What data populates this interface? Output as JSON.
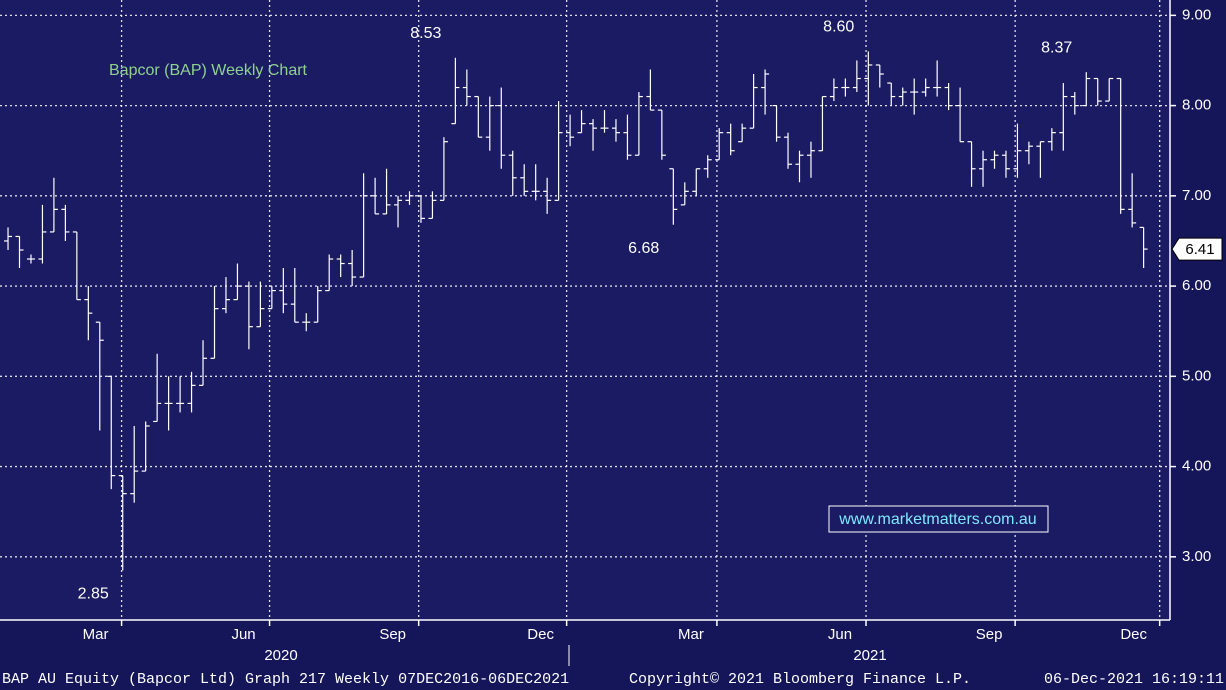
{
  "chart_data": {
    "type": "ohlc",
    "title": "Bapcor (BAP) Weekly Chart",
    "watermark": "www.marketmatters.com.au",
    "color": "#ffffff",
    "title_color": "#8fd28f",
    "grid": true,
    "xlim": [
      -0.7,
      101.3
    ],
    "xticks": [
      {
        "value": 9.9,
        "label": "Mar"
      },
      {
        "value": 22.8,
        "label": "Jun"
      },
      {
        "value": 35.8,
        "label": "Sep"
      },
      {
        "value": 48.7,
        "label": "Dec"
      },
      {
        "value": 61.8,
        "label": "Mar"
      },
      {
        "value": 74.8,
        "label": "Jun"
      },
      {
        "value": 87.8,
        "label": "Sep"
      },
      {
        "value": 100.4,
        "label": "Dec"
      }
    ],
    "years": [
      "2020",
      "2021"
    ],
    "ylim": [
      2.3,
      9.17
    ],
    "yticks": [
      {
        "value": 3,
        "label": "3.00"
      },
      {
        "value": 4,
        "label": "4.00"
      },
      {
        "value": 5,
        "label": "5.00"
      },
      {
        "value": 6,
        "label": "6.00"
      },
      {
        "value": 7,
        "label": "7.00"
      },
      {
        "value": 8,
        "label": "8.00"
      },
      {
        "value": 9,
        "label": "9.00"
      }
    ],
    "open": [
      6.5,
      6.55,
      6.3,
      6.3,
      6.6,
      6.85,
      6.6,
      5.85,
      5.6,
      5.0,
      3.9,
      3.7,
      3.95,
      4.5,
      4.7,
      4.7,
      4.7,
      4.9,
      5.2,
      5.75,
      5.85,
      6.0,
      5.55,
      5.75,
      5.95,
      5.8,
      5.6,
      5.6,
      5.95,
      6.3,
      6.25,
      6.1,
      7.0,
      6.8,
      6.9,
      6.95,
      7.0,
      6.75,
      6.95,
      7.8,
      8.2,
      8.1,
      7.65,
      8.0,
      7.45,
      7.2,
      7.05,
      7.05,
      6.95,
      7.7,
      7.7,
      7.8,
      7.75,
      7.75,
      7.7,
      7.45,
      8.1,
      7.95,
      7.3,
      6.9,
      7.05,
      7.3,
      7.4,
      7.7,
      7.6,
      7.75,
      8.2,
      8.0,
      7.65,
      7.35,
      7.45,
      7.5,
      8.1,
      8.2,
      8.2,
      8.3,
      8.45,
      8.25,
      8.1,
      8.15,
      8.15,
      8.2,
      8.2,
      8.0,
      7.6,
      7.3,
      7.4,
      7.45,
      7.3,
      7.5,
      7.55,
      7.6,
      7.7,
      8.1,
      8.0,
      8.3,
      8.05,
      8.3,
      6.85,
      6.65
    ],
    "high": [
      6.65,
      6.55,
      6.35,
      6.9,
      7.2,
      6.9,
      6.6,
      6.0,
      5.6,
      5.0,
      3.9,
      4.45,
      4.5,
      5.25,
      5.0,
      5.0,
      5.05,
      5.4,
      6.0,
      6.1,
      6.25,
      6.05,
      6.05,
      6.0,
      6.2,
      6.2,
      5.7,
      6.0,
      6.35,
      6.35,
      6.4,
      7.25,
      7.2,
      7.3,
      7.0,
      7.05,
      7.0,
      7.05,
      7.65,
      8.53,
      8.4,
      8.1,
      8.1,
      8.2,
      7.5,
      7.35,
      7.35,
      7.2,
      8.05,
      7.9,
      7.95,
      7.85,
      7.95,
      7.85,
      7.9,
      8.15,
      8.4,
      7.95,
      7.3,
      7.15,
      7.3,
      7.45,
      7.75,
      7.8,
      7.8,
      8.35,
      8.4,
      8.0,
      7.7,
      7.5,
      7.6,
      8.1,
      8.3,
      8.3,
      8.5,
      8.6,
      8.45,
      8.25,
      8.2,
      8.3,
      8.3,
      8.5,
      8.25,
      8.2,
      7.6,
      7.5,
      7.5,
      7.5,
      7.8,
      7.6,
      7.6,
      7.75,
      8.25,
      8.15,
      8.37,
      8.3,
      8.3,
      8.3,
      7.25,
      6.65
    ],
    "low": [
      6.4,
      6.2,
      6.25,
      6.25,
      6.6,
      6.5,
      5.85,
      5.4,
      4.4,
      3.75,
      2.85,
      3.6,
      3.95,
      4.5,
      4.4,
      4.6,
      4.6,
      4.9,
      5.2,
      5.7,
      5.85,
      5.3,
      5.55,
      5.75,
      5.7,
      5.6,
      5.5,
      5.6,
      5.95,
      6.1,
      6.0,
      6.1,
      6.8,
      6.8,
      6.65,
      6.9,
      6.7,
      6.75,
      6.95,
      7.8,
      8.0,
      7.65,
      7.5,
      7.3,
      7.0,
      7.0,
      6.95,
      6.8,
      6.95,
      7.55,
      7.7,
      7.5,
      7.7,
      7.6,
      7.4,
      7.45,
      7.95,
      7.4,
      6.68,
      6.9,
      7.0,
      7.2,
      7.4,
      7.45,
      7.6,
      7.75,
      7.9,
      7.6,
      7.3,
      7.15,
      7.2,
      7.5,
      8.05,
      8.1,
      8.15,
      8.0,
      8.2,
      8.0,
      8.0,
      7.9,
      8.1,
      8.1,
      7.95,
      7.6,
      7.1,
      7.1,
      7.3,
      7.2,
      7.2,
      7.35,
      7.2,
      7.5,
      7.5,
      7.9,
      8.0,
      8.0,
      8.05,
      6.8,
      6.65,
      6.2
    ],
    "close": [
      6.55,
      6.4,
      6.3,
      6.6,
      6.85,
      6.6,
      5.85,
      5.7,
      5.4,
      3.9,
      3.7,
      3.95,
      4.45,
      4.7,
      4.7,
      4.7,
      4.9,
      5.2,
      5.75,
      5.85,
      6.0,
      5.55,
      5.75,
      5.95,
      5.8,
      5.6,
      5.6,
      5.95,
      6.3,
      6.25,
      6.1,
      7.0,
      6.8,
      6.9,
      6.95,
      7.0,
      6.75,
      6.95,
      7.6,
      8.2,
      8.1,
      7.65,
      8.0,
      7.45,
      7.2,
      7.05,
      7.05,
      6.95,
      7.7,
      7.65,
      7.8,
      7.75,
      7.75,
      7.7,
      7.45,
      8.1,
      7.95,
      7.45,
      6.85,
      7.05,
      7.3,
      7.4,
      7.7,
      7.5,
      7.75,
      8.2,
      8.35,
      7.65,
      7.35,
      7.45,
      7.5,
      8.1,
      8.2,
      8.2,
      8.3,
      8.45,
      8.35,
      8.1,
      8.15,
      8.15,
      8.2,
      8.2,
      8.0,
      7.6,
      7.3,
      7.4,
      7.45,
      7.3,
      7.5,
      7.55,
      7.6,
      7.7,
      8.1,
      8.0,
      8.3,
      8.05,
      8.3,
      6.85,
      6.7,
      6.41
    ],
    "last_price": 6.41,
    "annotations": [
      {
        "value": 8.53,
        "label": "8.53"
      },
      {
        "value": 8.6,
        "label": "8.60"
      },
      {
        "value": 8.37,
        "label": "8.37"
      },
      {
        "value": 6.68,
        "label": "6.68"
      },
      {
        "value": 2.85,
        "label": "2.85"
      }
    ],
    "footer": {
      "left": "BAP AU Equity (Bapcor Ltd) Graph 217  Weekly 07DEC2016-06DEC2021",
      "center": "Copyright© 2021 Bloomberg Finance L.P.",
      "right": "06-Dec-2021 16:19:11"
    }
  }
}
